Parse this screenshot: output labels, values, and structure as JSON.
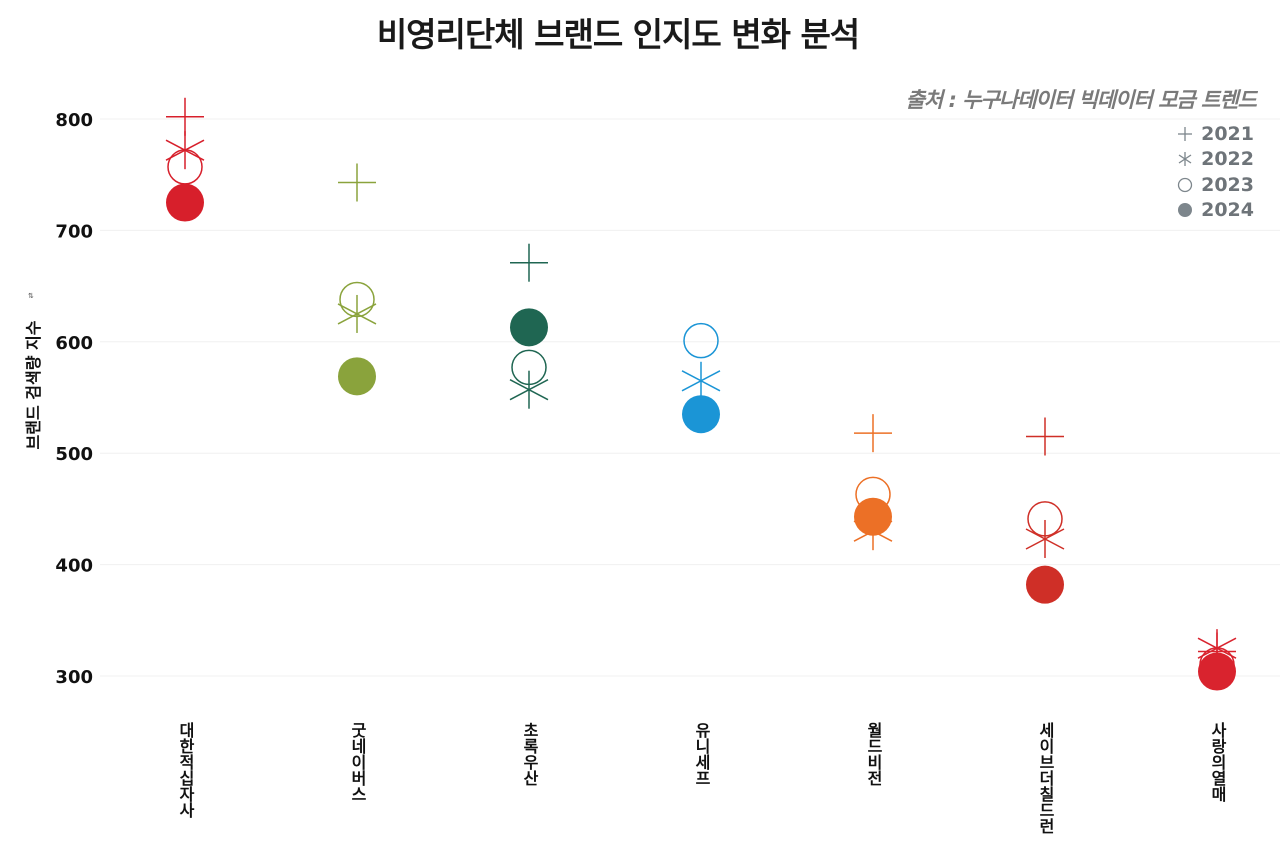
{
  "title": "비영리단체 브랜드 인지도 변화 분석",
  "source": "출처 : 누구나데이터 빅데이터 모금 트렌드",
  "chart_data": {
    "type": "scatter",
    "title": "비영리단체 브랜드 인지도 변화 분석",
    "subtitle": "출처 : 누구나데이터 빅데이터 모금 트렌드",
    "xlabel": "",
    "ylabel": "브랜드 검색량 지수",
    "ylim": [
      270,
      820
    ],
    "yticks": [
      300,
      400,
      500,
      600,
      700,
      800
    ],
    "grid": true,
    "legend_position": "top-right",
    "categories": [
      "대한적십자사",
      "굿네이버스",
      "초록우산",
      "유니세프",
      "월드비전",
      "세이브더칠드런",
      "사랑의열매"
    ],
    "category_colors": [
      "#d71f2b",
      "#8aa33c",
      "#1f6652",
      "#1b95d6",
      "#ec7026",
      "#cf2f27",
      "#d9232e"
    ],
    "series": [
      {
        "name": "2021",
        "marker": "plus",
        "values": [
          802,
          743,
          671,
          null,
          518,
          515,
          322
        ]
      },
      {
        "name": "2022",
        "marker": "star",
        "values": [
          772,
          625,
          557,
          565,
          430,
          423,
          325
        ]
      },
      {
        "name": "2023",
        "marker": "circle-open",
        "values": [
          757,
          638,
          577,
          601,
          463,
          441,
          310
        ]
      },
      {
        "name": "2024",
        "marker": "circle-filled",
        "values": [
          725,
          569,
          613,
          535,
          443,
          382,
          304
        ]
      }
    ]
  },
  "legend": [
    {
      "label": "2021",
      "marker": "plus"
    },
    {
      "label": "2022",
      "marker": "star"
    },
    {
      "label": "2023",
      "marker": "circle-open"
    },
    {
      "label": "2024",
      "marker": "circle-filled"
    }
  ],
  "legend_color": "#7d868c",
  "sort_icon": "sort-icon"
}
